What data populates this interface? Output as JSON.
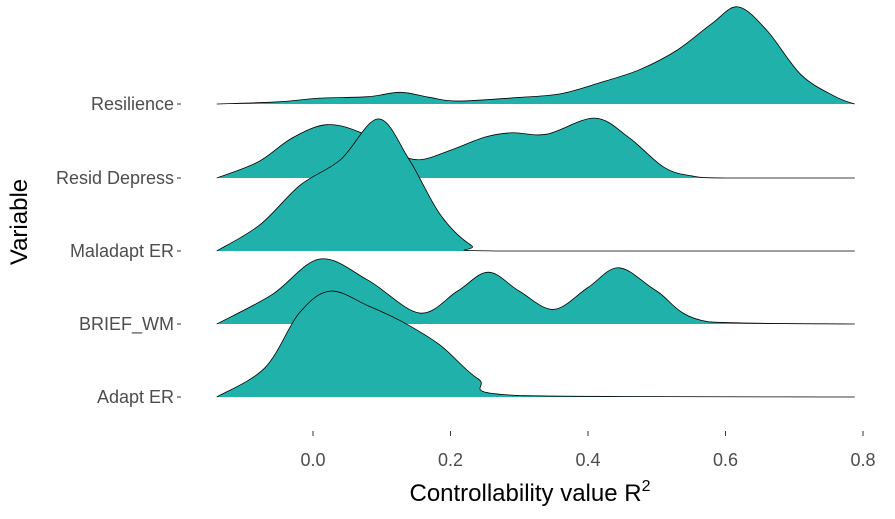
{
  "chart_data": {
    "type": "ridgeline",
    "xlabel": "Controllability value R",
    "xlabel_superscript": "2",
    "ylabel": "Variable",
    "xlim": [
      -0.145,
      0.79
    ],
    "x_ticks": [
      "0.0",
      "0.2",
      "0.4",
      "0.6",
      "0.8"
    ],
    "x_tick_values": [
      0,
      0.2,
      0.4,
      0.6,
      0.8
    ],
    "grid": false,
    "fill_color": "#20B2AA",
    "line_color": "#000000",
    "categories": [
      "Resilience",
      "Resid Depress",
      "Maladapt ER",
      "BRIEF_WM",
      "Adapt ER"
    ],
    "series": [
      {
        "name": "Resilience",
        "x": [
          -0.14,
          -0.05,
          0.01,
          0.08,
          0.127,
          0.17,
          0.21,
          0.3,
          0.36,
          0.42,
          0.475,
          0.53,
          0.58,
          0.618,
          0.66,
          0.71,
          0.76,
          0.788
        ],
        "density": [
          0,
          0.03,
          0.08,
          0.1,
          0.16,
          0.09,
          0.04,
          0.09,
          0.14,
          0.3,
          0.47,
          0.74,
          1.1,
          1.33,
          1.01,
          0.4,
          0.1,
          0.0
        ]
      },
      {
        "name": "Resid Depress",
        "x": [
          -0.14,
          -0.08,
          -0.03,
          0.02,
          0.07,
          0.12,
          0.155,
          0.2,
          0.25,
          0.29,
          0.34,
          0.41,
          0.46,
          0.51,
          0.55,
          0.6,
          0.788
        ],
        "density": [
          0,
          0.22,
          0.55,
          0.73,
          0.62,
          0.35,
          0.25,
          0.38,
          0.56,
          0.62,
          0.6,
          0.82,
          0.55,
          0.15,
          0.03,
          0,
          0
        ]
      },
      {
        "name": "Maladapt ER",
        "x": [
          -0.14,
          -0.077,
          -0.019,
          0.04,
          0.095,
          0.14,
          0.185,
          0.23,
          0.27,
          0.788
        ],
        "density": [
          0,
          0.36,
          0.9,
          1.25,
          1.81,
          1.25,
          0.5,
          0.08,
          0,
          0
        ]
      },
      {
        "name": "BRIEF_WM",
        "x": [
          -0.14,
          -0.06,
          0.01,
          0.08,
          0.155,
          0.21,
          0.255,
          0.3,
          0.35,
          0.4,
          0.445,
          0.5,
          0.575,
          0.788
        ],
        "density": [
          0,
          0.4,
          0.89,
          0.6,
          0.15,
          0.45,
          0.71,
          0.45,
          0.2,
          0.5,
          0.77,
          0.45,
          0.03,
          0
        ]
      },
      {
        "name": "Adapt ER",
        "x": [
          -0.14,
          -0.07,
          -0.02,
          0.025,
          0.08,
          0.13,
          0.185,
          0.24,
          0.3,
          0.788
        ],
        "density": [
          0,
          0.4,
          1.15,
          1.45,
          1.25,
          1.03,
          0.71,
          0.25,
          0.02,
          0
        ]
      }
    ]
  }
}
